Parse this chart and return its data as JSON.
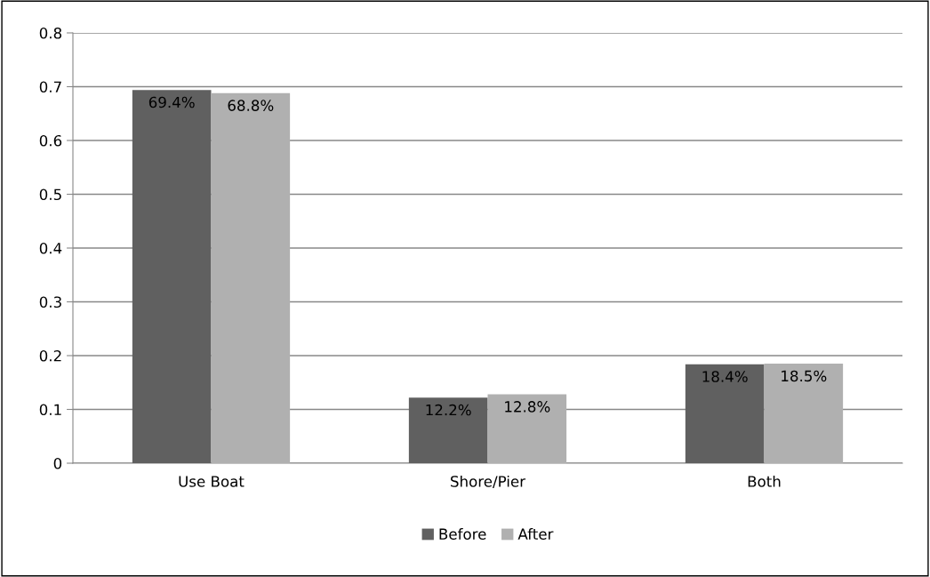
{
  "chart_data": {
    "type": "bar",
    "categories": [
      "Use Boat",
      "Shore/Pier",
      "Both"
    ],
    "series": [
      {
        "name": "Before",
        "color": "#606060",
        "values": [
          0.694,
          0.122,
          0.184
        ],
        "value_labels": [
          "69.4%",
          "12.2%",
          "18.4%"
        ]
      },
      {
        "name": "After",
        "color": "#b0b0b0",
        "values": [
          0.688,
          0.128,
          0.185
        ],
        "value_labels": [
          "68.8%",
          "12.8%",
          "18.5%"
        ]
      }
    ],
    "ylim": [
      0,
      0.8
    ],
    "yticks": [
      {
        "value": 0,
        "label": "0"
      },
      0.1,
      0.2,
      0.3,
      0.4,
      0.5,
      0.6,
      0.7,
      0.8
    ],
    "grid": "y",
    "legend": "bottom"
  }
}
